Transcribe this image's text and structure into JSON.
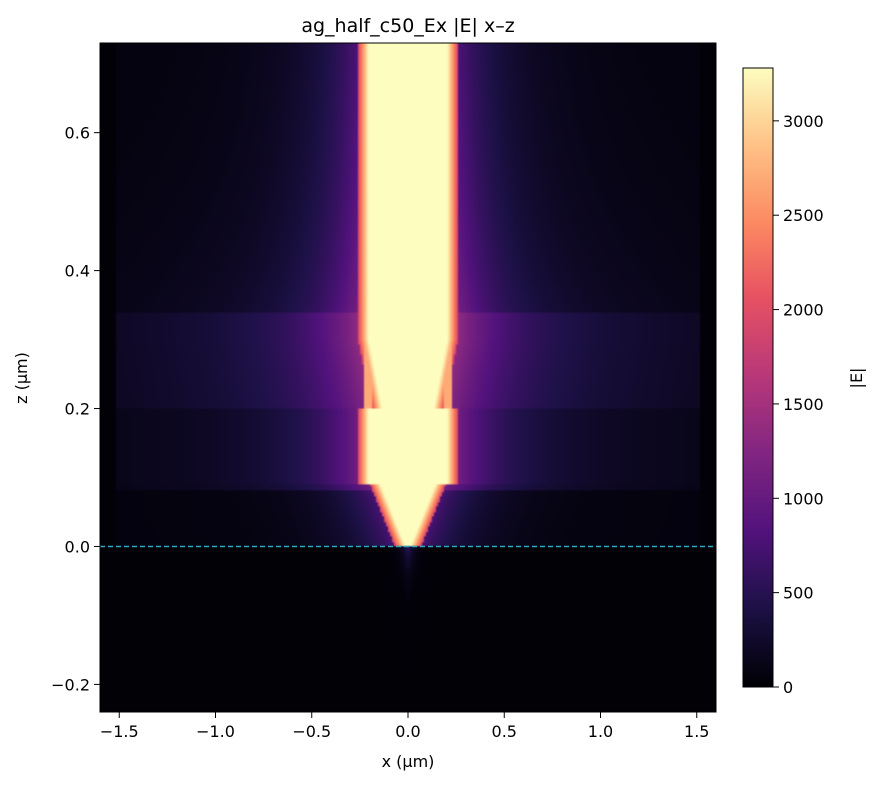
{
  "chart_data": {
    "type": "heatmap",
    "title": "ag_half_c50_Ex |E| x–z",
    "xlabel": "x (µm)",
    "ylabel": "z (µm)",
    "xlim": [
      -1.6,
      1.6
    ],
    "ylim": [
      -0.24,
      0.73
    ],
    "x_ticks": [
      {
        "value": -1.5,
        "label": "−1.5"
      },
      {
        "value": -1.0,
        "label": "−1.0"
      },
      {
        "value": -0.5,
        "label": "−0.5"
      },
      {
        "value": 0.0,
        "label": "0.0"
      },
      {
        "value": 0.5,
        "label": "0.5"
      },
      {
        "value": 1.0,
        "label": "1.0"
      },
      {
        "value": 1.5,
        "label": "1.5"
      }
    ],
    "y_ticks": [
      {
        "value": -0.2,
        "label": "−0.2"
      },
      {
        "value": 0.0,
        "label": "0.0"
      },
      {
        "value": 0.2,
        "label": "0.2"
      },
      {
        "value": 0.4,
        "label": "0.4"
      },
      {
        "value": 0.6,
        "label": "0.6"
      }
    ],
    "colormap": "magma",
    "colorbar": {
      "label": "|E|",
      "range": [
        0,
        3280
      ],
      "ticks": [
        {
          "value": 0,
          "label": "0"
        },
        {
          "value": 500,
          "label": "500"
        },
        {
          "value": 1000,
          "label": "1000"
        },
        {
          "value": 1500,
          "label": "1500"
        },
        {
          "value": 2000,
          "label": "2000"
        },
        {
          "value": 2500,
          "label": "2500"
        },
        {
          "value": 3000,
          "label": "3000"
        }
      ]
    },
    "reference_line": {
      "z": 0.0,
      "style": "dashed",
      "color": "#2aa8c4"
    },
    "field_features": {
      "core_region": "bright (~3300) near x=0 for z from 0 to top, narrowing to tip at z=0",
      "side_lobes": "bright lines at x≈±0.2 µm for z>0.2",
      "slab_layers": "glow bands for 0.08<z<0.2 and 0.2<z<0.3 across x∈[-1.5,1.5]",
      "substrate": "near-zero field for z<0"
    },
    "grid": false
  }
}
